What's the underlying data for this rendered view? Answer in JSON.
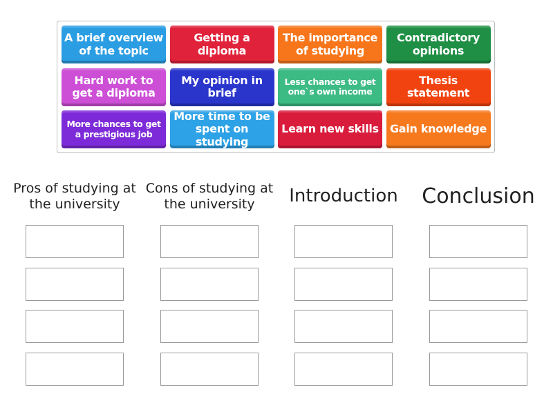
{
  "tiles": [
    {
      "label": "A brief overview of the topic",
      "color": "#2a9de3"
    },
    {
      "label": "Getting a diploma",
      "color": "#e0223a"
    },
    {
      "label": "The importance of studying",
      "color": "#f7761c"
    },
    {
      "label": "Contradictory opinions",
      "color": "#1f8f45"
    },
    {
      "label": "Hard work to get a diploma",
      "color": "#cc4fd6"
    },
    {
      "label": "My opinion in brief",
      "color": "#2a35cc"
    },
    {
      "label": "Less chances to get one`s own income",
      "color": "#3dbb85"
    },
    {
      "label": "Thesis statement",
      "color": "#f0430f"
    },
    {
      "label": "More chances to get a prestigious job",
      "color": "#7d2bd8"
    },
    {
      "label": "More time to be spent on studying",
      "color": "#2ea2e6"
    },
    {
      "label": "Learn new skills",
      "color": "#da1c3c"
    },
    {
      "label": "Gain knowledge",
      "color": "#f7791e"
    }
  ],
  "groups": [
    {
      "title": "Pros of studying at the university"
    },
    {
      "title": "Cons of studying at the university"
    },
    {
      "title": "Introduction"
    },
    {
      "title": "Conclusion"
    }
  ]
}
